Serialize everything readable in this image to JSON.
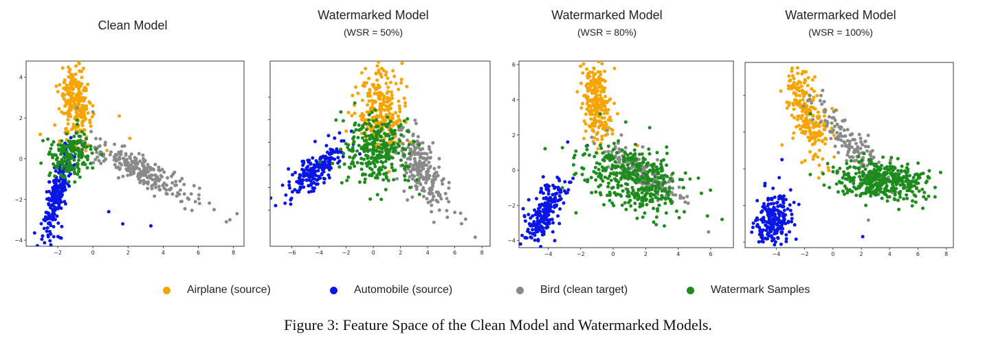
{
  "figure": {
    "caption": "Figure 3: Feature Space of the Clean Model and Watermarked Models."
  },
  "colors": {
    "airplane": "#f7a400",
    "automobile": "#0a16e6",
    "bird": "#8a8a8a",
    "watermark": "#1d8c1d"
  },
  "legend": [
    {
      "label": "Airplane (source)",
      "color": "#f7a400"
    },
    {
      "label": "Automobile (source)",
      "color": "#0a16e6"
    },
    {
      "label": "Bird (clean target)",
      "color": "#8a8a8a"
    },
    {
      "label": "Watermark Samples",
      "color": "#1d8c1d"
    }
  ],
  "chart_data": [
    {
      "type": "scatter",
      "title": "Clean Model",
      "subtitle": "",
      "xlim": [
        -3.8,
        8.6
      ],
      "ylim": [
        -4.3,
        4.8
      ],
      "xticks": [
        -2,
        0,
        2,
        4,
        6,
        8
      ],
      "yticks": [
        -4,
        -2,
        0,
        2,
        4
      ],
      "show_ytick_labels": true,
      "series": [
        {
          "key": "airplane",
          "n": 260,
          "center": [
            -1.0,
            2.7
          ],
          "spread": [
            0.45,
            0.9
          ],
          "corr": -0.3,
          "points": [
            [
              -1.4,
              4.5
            ],
            [
              -3.0,
              1.2
            ],
            [
              1.5,
              2.1
            ],
            [
              2.1,
              1.0
            ],
            [
              0.8,
              0.4
            ]
          ]
        },
        {
          "key": "bird",
          "n": 230,
          "center": [
            2.8,
            -0.6
          ],
          "spread": [
            1.5,
            0.75
          ],
          "corr": -0.88,
          "points": [
            [
              -0.9,
              2.5
            ],
            [
              0.0,
              2.3
            ],
            [
              4.2,
              -1.3
            ],
            [
              6.9,
              -2.5
            ],
            [
              7.6,
              -3.1
            ],
            [
              8.2,
              -2.7
            ],
            [
              7.8,
              -3.0
            ]
          ]
        },
        {
          "key": "automobile",
          "n": 240,
          "center": [
            -2.0,
            -1.6
          ],
          "spread": [
            0.45,
            1.2
          ],
          "corr": 0.78,
          "points": [
            [
              -1.8,
              -3.9
            ],
            [
              -2.4,
              -3.7
            ],
            [
              1.7,
              -3.2
            ],
            [
              3.3,
              -3.3
            ],
            [
              0.9,
              -2.6
            ]
          ]
        },
        {
          "key": "watermark",
          "n": 180,
          "center": [
            -1.2,
            0.2
          ],
          "spread": [
            0.55,
            0.55
          ],
          "corr": 0.1,
          "points": [
            [
              -0.9,
              1.9
            ],
            [
              0.5,
              0.2
            ]
          ]
        }
      ]
    },
    {
      "type": "scatter",
      "title": "Watermarked Model",
      "subtitle": "(WSR = 50%)",
      "xlim": [
        -7.6,
        8.6
      ],
      "ylim": [
        -3.6,
        4.6
      ],
      "xticks": [
        -6,
        -4,
        -2,
        0,
        2,
        4,
        6,
        8
      ],
      "yticks": [
        -2,
        -1,
        0,
        1,
        2,
        3
      ],
      "show_ytick_labels": false,
      "series": [
        {
          "key": "airplane",
          "n": 260,
          "center": [
            0.5,
            2.5
          ],
          "spread": [
            0.8,
            0.9
          ],
          "corr": -0.1,
          "points": [
            [
              0.4,
              4.2
            ],
            [
              -2.0,
              1.5
            ],
            [
              2.7,
              1.0
            ],
            [
              3.0,
              0.5
            ]
          ]
        },
        {
          "key": "bird",
          "n": 220,
          "center": [
            3.6,
            -0.2
          ],
          "spread": [
            0.9,
            0.9
          ],
          "corr": -0.6,
          "points": [
            [
              5.0,
              -1.5
            ],
            [
              6.0,
              -2.1
            ],
            [
              6.5,
              -2.6
            ],
            [
              7.5,
              -3.2
            ],
            [
              6.8,
              -2.4
            ]
          ]
        },
        {
          "key": "automobile",
          "n": 200,
          "center": [
            -4.2,
            -0.2
          ],
          "spread": [
            1.0,
            0.55
          ],
          "corr": 0.7,
          "points": [
            [
              -7.2,
              -1.8
            ],
            [
              -6.2,
              -0.9
            ],
            [
              -3.3,
              1.3
            ]
          ]
        },
        {
          "key": "watermark",
          "n": 300,
          "center": [
            0.2,
            0.6
          ],
          "spread": [
            1.2,
            0.75
          ],
          "corr": 0.0,
          "points": [
            [
              -0.9,
              1.6
            ],
            [
              2.7,
              -1.0
            ],
            [
              3.4,
              -1.3
            ]
          ]
        }
      ]
    },
    {
      "type": "scatter",
      "title": "Watermarked Model",
      "subtitle": "(WSR = 80%)",
      "xlim": [
        -5.8,
        7.4
      ],
      "ylim": [
        -4.4,
        6.2
      ],
      "xticks": [
        -4,
        -2,
        0,
        2,
        4,
        6
      ],
      "yticks": [
        -4,
        -2,
        0,
        2,
        4,
        6
      ],
      "show_ytick_labels": true,
      "series": [
        {
          "key": "airplane",
          "n": 240,
          "center": [
            -1.0,
            3.8
          ],
          "spread": [
            0.45,
            1.1
          ],
          "corr": -0.2,
          "points": [
            [
              -1.2,
              5.8
            ],
            [
              -1.8,
              1.8
            ],
            [
              1.5,
              1.4
            ]
          ]
        },
        {
          "key": "bird",
          "n": 180,
          "center": [
            2.0,
            -0.3
          ],
          "spread": [
            1.2,
            0.8
          ],
          "corr": -0.8,
          "points": [
            [
              4.3,
              -1.0
            ],
            [
              0.5,
              2.0
            ]
          ]
        },
        {
          "key": "automobile",
          "n": 230,
          "center": [
            -4.2,
            -2.4
          ],
          "spread": [
            0.6,
            0.9
          ],
          "corr": 0.55,
          "points": [
            [
              -3.6,
              -4.0
            ],
            [
              -2.8,
              1.6
            ],
            [
              -1.6,
              1.4
            ]
          ]
        },
        {
          "key": "watermark",
          "n": 400,
          "center": [
            1.2,
            -0.5
          ],
          "spread": [
            1.6,
            1.0
          ],
          "corr": -0.35,
          "points": [
            [
              6.7,
              -2.8
            ],
            [
              5.8,
              -2.6
            ],
            [
              -0.8,
              3.2
            ]
          ]
        }
      ]
    },
    {
      "type": "scatter",
      "title": "Watermarked Model",
      "subtitle": "(WSR = 100%)",
      "xlim": [
        -6.2,
        8.5
      ],
      "ylim": [
        -4.3,
        5.8
      ],
      "xticks": [
        -4,
        -2,
        0,
        2,
        4,
        6,
        8
      ],
      "yticks": [
        -4,
        -2,
        0,
        2,
        4
      ],
      "show_ytick_labels": false,
      "series": [
        {
          "key": "airplane",
          "n": 230,
          "center": [
            -1.8,
            3.0
          ],
          "spread": [
            0.7,
            1.3
          ],
          "corr": -0.5,
          "points": [
            [
              -2.5,
              5.5
            ],
            [
              -3.6,
              1.3
            ],
            [
              -1.0,
              -0.5
            ],
            [
              2.6,
              0.8
            ]
          ]
        },
        {
          "key": "bird",
          "n": 160,
          "center": [
            1.3,
            1.3
          ],
          "spread": [
            1.3,
            1.2
          ],
          "corr": -0.9,
          "points": [
            [
              2.3,
              1.5
            ],
            [
              2.5,
              -2.8
            ],
            [
              4.2,
              -1.3
            ]
          ]
        },
        {
          "key": "automobile",
          "n": 220,
          "center": [
            -4.2,
            -2.7
          ],
          "spread": [
            0.65,
            0.75
          ],
          "corr": 0.3,
          "points": [
            [
              -5.0,
              -3.7
            ],
            [
              -3.3,
              -3.6
            ],
            [
              -4.8,
              -0.8
            ],
            [
              -3.6,
              0.5
            ],
            [
              2.1,
              -3.7
            ]
          ]
        },
        {
          "key": "watermark",
          "n": 400,
          "center": [
            3.5,
            -0.6
          ],
          "spread": [
            1.6,
            0.55
          ],
          "corr": -0.2,
          "points": [
            [
              7.6,
              -0.2
            ],
            [
              6.8,
              -0.5
            ],
            [
              -1.6,
              3.0
            ]
          ]
        }
      ]
    }
  ]
}
